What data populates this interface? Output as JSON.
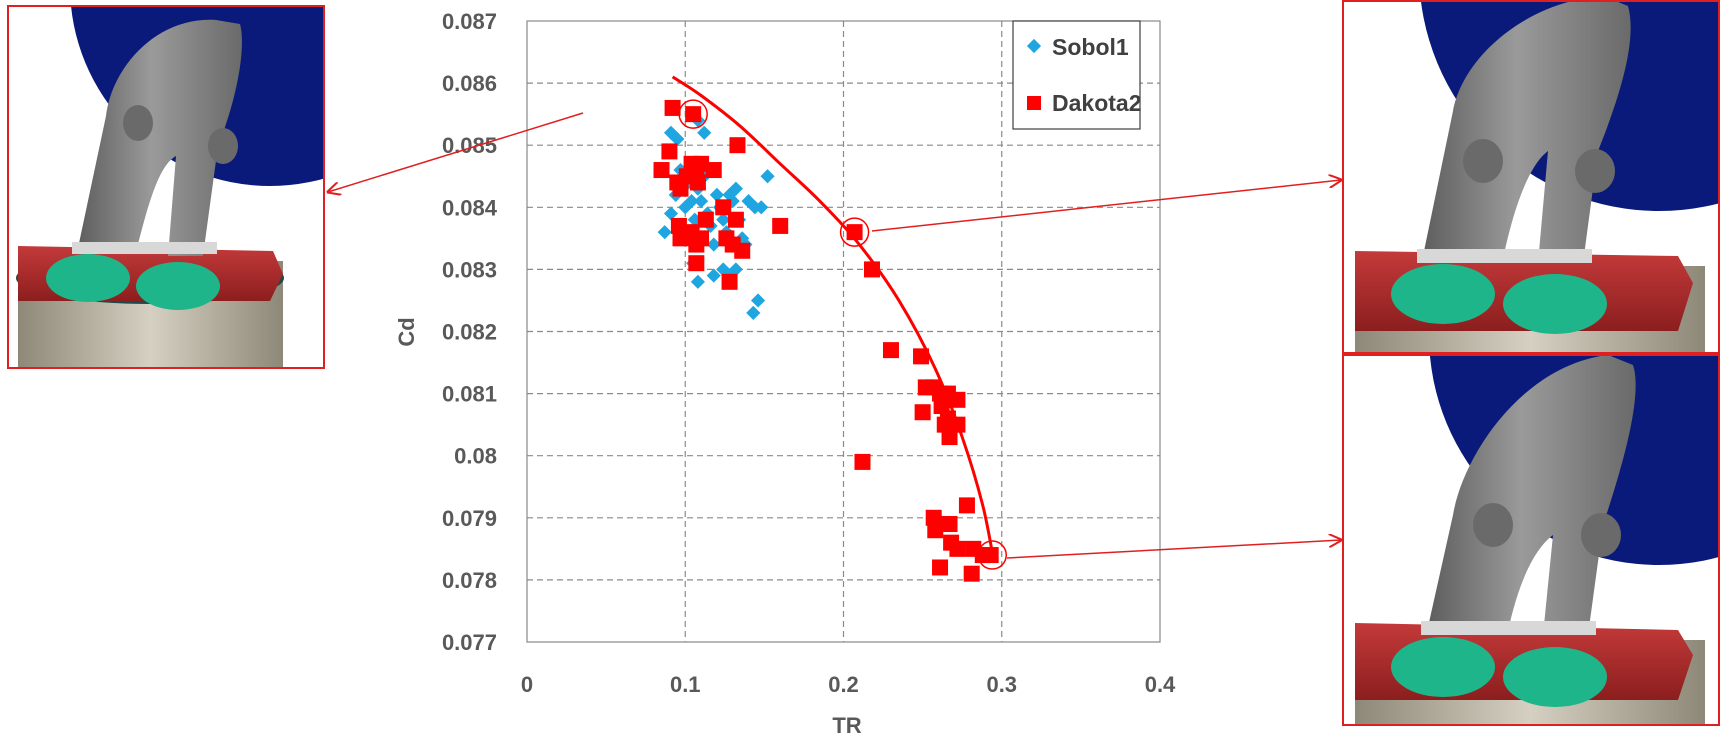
{
  "chart_data": {
    "type": "scatter",
    "xlabel": "TR",
    "ylabel": "Cd",
    "xlim": [
      0,
      0.4
    ],
    "ylim": [
      0.077,
      0.087
    ],
    "x_ticks": [
      "0",
      "0.1",
      "0.2",
      "0.3",
      "0.4"
    ],
    "y_ticks": [
      "0.077",
      "0.078",
      "0.079",
      "0.08",
      "0.081",
      "0.082",
      "0.083",
      "0.084",
      "0.085",
      "0.086",
      "0.087"
    ],
    "grid": true,
    "legend_position": "top-right",
    "series": [
      {
        "name": "Sobol1",
        "color": "#1fa6e0",
        "marker": "diamond",
        "points": [
          [
            0.091,
            0.0852
          ],
          [
            0.095,
            0.0851
          ],
          [
            0.108,
            0.0854
          ],
          [
            0.112,
            0.0852
          ],
          [
            0.087,
            0.0836
          ],
          [
            0.091,
            0.0839
          ],
          [
            0.094,
            0.0842
          ],
          [
            0.097,
            0.0846
          ],
          [
            0.1,
            0.084
          ],
          [
            0.102,
            0.0844
          ],
          [
            0.104,
            0.0841
          ],
          [
            0.106,
            0.0838
          ],
          [
            0.108,
            0.0843
          ],
          [
            0.11,
            0.0841
          ],
          [
            0.112,
            0.0845
          ],
          [
            0.114,
            0.0839
          ],
          [
            0.116,
            0.0837
          ],
          [
            0.118,
            0.0834
          ],
          [
            0.12,
            0.0842
          ],
          [
            0.122,
            0.084
          ],
          [
            0.124,
            0.0838
          ],
          [
            0.126,
            0.0836
          ],
          [
            0.128,
            0.0842
          ],
          [
            0.13,
            0.0841
          ],
          [
            0.132,
            0.0843
          ],
          [
            0.134,
            0.0838
          ],
          [
            0.136,
            0.0835
          ],
          [
            0.138,
            0.0834
          ],
          [
            0.14,
            0.0841
          ],
          [
            0.144,
            0.084
          ],
          [
            0.148,
            0.084
          ],
          [
            0.152,
            0.0845
          ],
          [
            0.105,
            0.0831
          ],
          [
            0.108,
            0.0828
          ],
          [
            0.118,
            0.0829
          ],
          [
            0.124,
            0.083
          ],
          [
            0.128,
            0.0829
          ],
          [
            0.132,
            0.083
          ],
          [
            0.143,
            0.0823
          ],
          [
            0.146,
            0.0825
          ]
        ]
      },
      {
        "name": "Dakota2",
        "color": "#ff0000",
        "marker": "square",
        "points": [
          [
            0.092,
            0.0856
          ],
          [
            0.105,
            0.0855
          ],
          [
            0.09,
            0.0849
          ],
          [
            0.133,
            0.085
          ],
          [
            0.085,
            0.0846
          ],
          [
            0.095,
            0.0844
          ],
          [
            0.097,
            0.0843
          ],
          [
            0.101,
            0.0845
          ],
          [
            0.104,
            0.0847
          ],
          [
            0.107,
            0.0846
          ],
          [
            0.11,
            0.0847
          ],
          [
            0.108,
            0.0844
          ],
          [
            0.118,
            0.0846
          ],
          [
            0.096,
            0.0837
          ],
          [
            0.097,
            0.0835
          ],
          [
            0.104,
            0.0836
          ],
          [
            0.107,
            0.0834
          ],
          [
            0.11,
            0.0835
          ],
          [
            0.113,
            0.0838
          ],
          [
            0.124,
            0.084
          ],
          [
            0.126,
            0.0835
          ],
          [
            0.13,
            0.0834
          ],
          [
            0.132,
            0.0838
          ],
          [
            0.136,
            0.0833
          ],
          [
            0.107,
            0.0831
          ],
          [
            0.128,
            0.0828
          ],
          [
            0.16,
            0.0837
          ],
          [
            0.207,
            0.0836
          ],
          [
            0.218,
            0.083
          ],
          [
            0.23,
            0.0817
          ],
          [
            0.249,
            0.0816
          ],
          [
            0.252,
            0.0811
          ],
          [
            0.257,
            0.0811
          ],
          [
            0.261,
            0.081
          ],
          [
            0.266,
            0.081
          ],
          [
            0.272,
            0.0809
          ],
          [
            0.262,
            0.0808
          ],
          [
            0.266,
            0.0806
          ],
          [
            0.25,
            0.0807
          ],
          [
            0.264,
            0.0805
          ],
          [
            0.272,
            0.0805
          ],
          [
            0.267,
            0.0803
          ],
          [
            0.212,
            0.0799
          ],
          [
            0.278,
            0.0792
          ],
          [
            0.257,
            0.079
          ],
          [
            0.267,
            0.0789
          ],
          [
            0.258,
            0.0788
          ],
          [
            0.268,
            0.0786
          ],
          [
            0.282,
            0.0785
          ],
          [
            0.272,
            0.0785
          ],
          [
            0.288,
            0.0784
          ],
          [
            0.293,
            0.0784
          ],
          [
            0.261,
            0.0782
          ],
          [
            0.281,
            0.0781
          ]
        ]
      }
    ],
    "pareto_front_color": "#ff0000",
    "pareto_front": [
      [
        0.092,
        0.0861
      ],
      [
        0.11,
        0.0858
      ],
      [
        0.135,
        0.0853
      ],
      [
        0.16,
        0.0847
      ],
      [
        0.185,
        0.0841
      ],
      [
        0.21,
        0.0834
      ],
      [
        0.235,
        0.0825
      ],
      [
        0.258,
        0.0814
      ],
      [
        0.275,
        0.0803
      ],
      [
        0.288,
        0.0792
      ],
      [
        0.295,
        0.0783
      ]
    ],
    "highlighted_points": [
      [
        0.105,
        0.0855
      ],
      [
        0.207,
        0.0836
      ],
      [
        0.294,
        0.0784
      ]
    ]
  },
  "render_images": {
    "colors": {
      "frame": "#e02020",
      "sky": "#0a1a7a",
      "port": "#7d7d7d",
      "deck": "#b02828",
      "valve": "#1fb58a",
      "cylinder": "#c9c2b2"
    }
  }
}
